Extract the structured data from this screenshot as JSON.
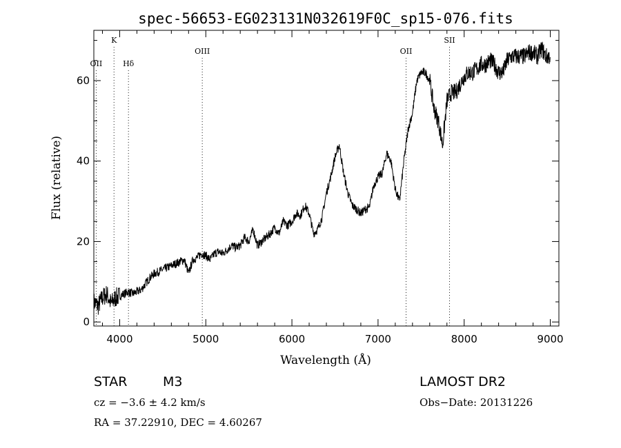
{
  "chart_data": {
    "type": "line",
    "title": "spec-56653-EG023131N032619F0C_sp15-076.fits",
    "xlabel": "Wavelength (Å)",
    "ylabel": "Flux (relative)",
    "xlim": [
      3700,
      9100
    ],
    "ylim": [
      -1,
      72.5
    ],
    "xticks": [
      4000,
      5000,
      6000,
      7000,
      8000,
      9000
    ],
    "yticks": [
      0,
      20,
      40,
      60
    ],
    "series": [
      {
        "x": [
          3700,
          3750,
          3800,
          3850,
          3900,
          3950,
          4000,
          4050,
          4100,
          4150,
          4200,
          4250,
          4300,
          4350,
          4400,
          4450,
          4500,
          4550,
          4600,
          4650,
          4700,
          4750,
          4800,
          4850,
          4900,
          4950,
          5000,
          5050,
          5100,
          5150,
          5200,
          5250,
          5300,
          5350,
          5400,
          5450,
          5500,
          5550,
          5600,
          5650,
          5700,
          5750,
          5800,
          5850,
          5900,
          5950,
          6000,
          6050,
          6100,
          6150,
          6200,
          6250,
          6300,
          6350,
          6400,
          6450,
          6500,
          6550,
          6600,
          6650,
          6700,
          6750,
          6800,
          6850,
          6900,
          6950,
          7000,
          7050,
          7100,
          7150,
          7200,
          7250,
          7300,
          7350,
          7400,
          7450,
          7500,
          7550,
          7600,
          7650,
          7700,
          7750,
          7800,
          7850,
          7900,
          7950,
          8000,
          8050,
          8100,
          8150,
          8200,
          8250,
          8300,
          8350,
          8400,
          8450,
          8500,
          8550,
          8600,
          8650,
          8700,
          8750,
          8800,
          8850,
          8900,
          8950,
          9000
        ],
        "values": [
          5,
          4,
          6,
          7,
          4.5,
          6,
          6.5,
          7,
          7.5,
          7,
          7.5,
          8,
          9.5,
          11,
          12,
          12.5,
          13,
          13.5,
          14,
          14.5,
          15,
          15.5,
          12,
          15.5,
          16,
          17,
          16.5,
          15.5,
          17,
          17.5,
          17,
          18,
          19,
          18.5,
          19,
          21,
          20,
          23,
          19,
          20,
          21,
          22,
          23.5,
          22,
          25,
          24,
          25,
          27,
          26.5,
          29,
          27,
          22,
          23,
          26,
          32,
          36,
          41,
          44,
          37,
          32,
          29,
          28,
          27,
          28,
          28.5,
          34,
          36,
          37,
          42,
          40,
          33,
          30,
          40,
          48,
          52,
          60,
          62,
          62,
          60,
          53,
          50,
          44,
          55,
          57,
          57,
          59,
          61,
          62,
          62,
          63,
          64,
          64,
          65,
          64,
          62,
          62,
          65,
          66,
          66,
          66,
          66,
          67,
          67,
          66,
          68,
          66,
          66
        ]
      }
    ],
    "emission_lines": [
      {
        "label": "OII",
        "wavelength": 3727
      },
      {
        "label": "K",
        "wavelength": 3934
      },
      {
        "label": "Hδ",
        "wavelength": 4102
      },
      {
        "label": "OIII",
        "wavelength": 4959
      },
      {
        "label": "OII",
        "wavelength": 7325
      },
      {
        "label": "SII",
        "wavelength": 7830
      }
    ]
  },
  "info": {
    "object_class": "STAR",
    "subclass": "M3",
    "survey": "LAMOST DR2",
    "cz": "cz = −3.6 ± 4.2 km/s",
    "obs_date": "Obs−Date: 20131226",
    "coords": "RA =  37.22910, DEC =    4.60267"
  }
}
